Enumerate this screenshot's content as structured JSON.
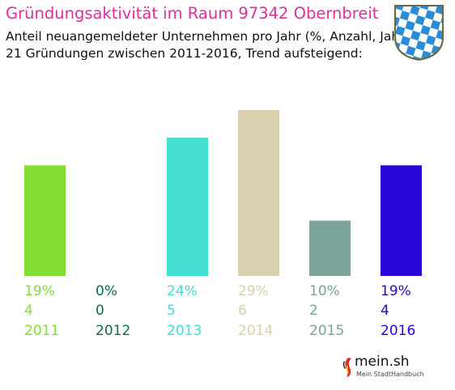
{
  "title": "Gründungsaktivität im Raum 97342 Obernbreit",
  "subtitle_1": "Anteil neuangemeldeter Unternehmen pro Jahr (%, Anzahl, Jahr)",
  "subtitle_2": "21 Gründungen zwischen 2011-2016, Trend aufsteigend:",
  "crest": "bavarian-lozenge-crest",
  "brand": {
    "name": "mein.sh",
    "tagline": "Mein StadtHandbuch"
  },
  "chart_data": {
    "type": "bar",
    "categories": [
      "2011",
      "2012",
      "2013",
      "2014",
      "2015",
      "2016"
    ],
    "values": [
      4,
      0,
      5,
      6,
      2,
      4
    ],
    "percent_labels": [
      "19%",
      "0%",
      "24%",
      "29%",
      "10%",
      "19%"
    ],
    "colors": [
      "#84dd34",
      "#0f6d50",
      "#43ded4",
      "#d9d1ad",
      "#7ba59a",
      "#2807d8"
    ],
    "ylim": [
      0,
      6
    ],
    "grid": false,
    "legend": "none"
  }
}
